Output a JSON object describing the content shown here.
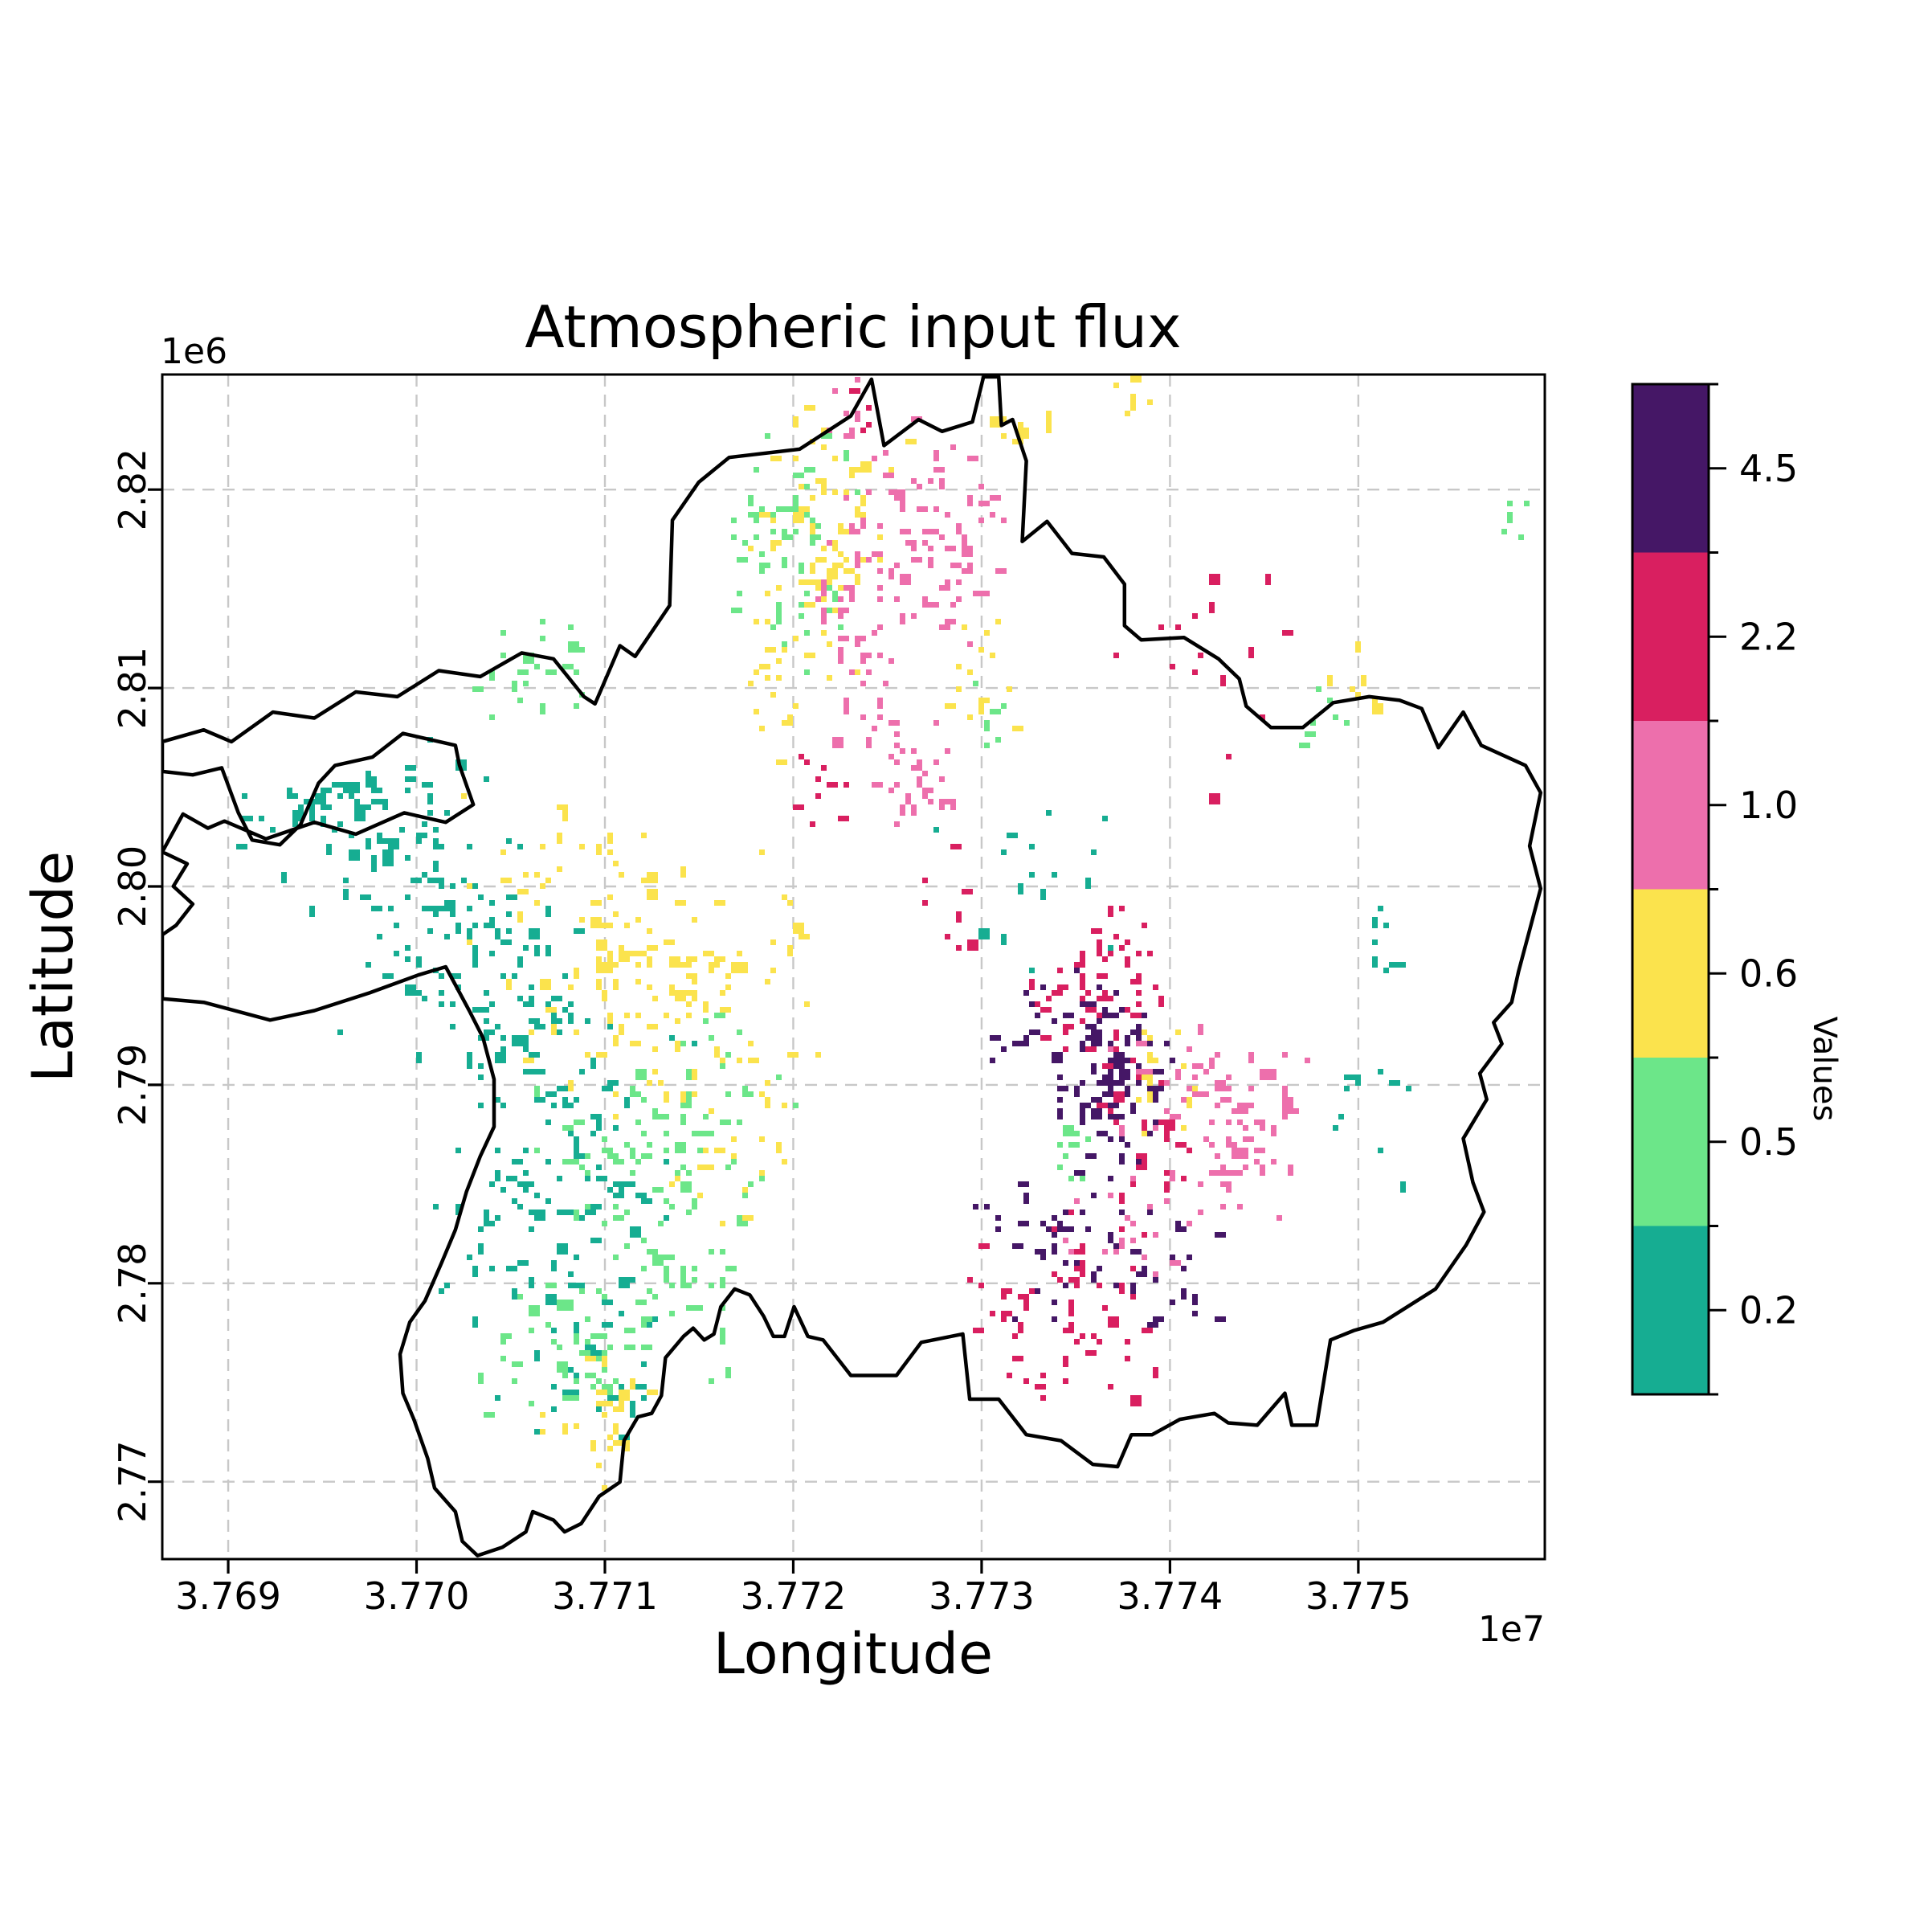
{
  "figure": {
    "title": "Atmospheric input flux",
    "x_axis_label": "Longitude",
    "y_axis_label": "Latitude",
    "x_offset_text": "1e7",
    "y_offset_text": "1e6",
    "background_color": "#ffffff",
    "boundary_color": "#000000",
    "grid_color": "#c8c8c8"
  },
  "colorbar": {
    "label": "Values",
    "classes_top_to_bottom": [
      {
        "label": "4.5",
        "color": "#451766"
      },
      {
        "label": "2.2",
        "color": "#D91F60"
      },
      {
        "label": "1.0",
        "color": "#ED6FAC"
      },
      {
        "label": "0.6",
        "color": "#FBE34D"
      },
      {
        "label": "0.5",
        "color": "#6CE689"
      },
      {
        "label": "0.2",
        "color": "#16AD92"
      }
    ]
  },
  "chart_data": {
    "type": "heatmap",
    "subtype": "categorized-raster-map",
    "title": "Atmospheric input flux",
    "xlabel": "Longitude",
    "ylabel": "Latitude",
    "xlim": [
      37686500,
      37759900
    ],
    "ylim": [
      2766100,
      2825800
    ],
    "x_ticks": [
      {
        "value": 37690000,
        "label": "3.769"
      },
      {
        "value": 37700000,
        "label": "3.770"
      },
      {
        "value": 37710000,
        "label": "3.771"
      },
      {
        "value": 37720000,
        "label": "3.772"
      },
      {
        "value": 37730000,
        "label": "3.773"
      },
      {
        "value": 37740000,
        "label": "3.774"
      },
      {
        "value": 37750000,
        "label": "3.775"
      }
    ],
    "y_ticks": [
      {
        "value": 2820000,
        "label": "2.82"
      },
      {
        "value": 2810000,
        "label": "2.81"
      },
      {
        "value": 2800000,
        "label": "2.80"
      },
      {
        "value": 2790000,
        "label": "2.79"
      },
      {
        "value": 2780000,
        "label": "2.78"
      },
      {
        "value": 2770000,
        "label": "2.77"
      }
    ],
    "grid": true,
    "legend_position": "right-colorbar",
    "value_classes": [
      {
        "label": "0.2",
        "color": "#16AD92"
      },
      {
        "label": "0.5",
        "color": "#6CE689"
      },
      {
        "label": "0.6",
        "color": "#FBE34D"
      },
      {
        "label": "1.0",
        "color": "#ED6FAC"
      },
      {
        "label": "2.2",
        "color": "#D91F60"
      },
      {
        "label": "4.5",
        "color": "#451766"
      }
    ],
    "coords_note": "boundary_frac and clusters use fractions of the plot axes box; x from left 0 to right 1, y from top 0 to bottom 1",
    "boundary_frac": [
      [
        0.513,
        0.004
      ],
      [
        0.522,
        0.06
      ],
      [
        0.547,
        0.038
      ],
      [
        0.564,
        0.048
      ],
      [
        0.586,
        0.04
      ],
      [
        0.594,
        0.002
      ],
      [
        0.605,
        0.002
      ],
      [
        0.607,
        0.043
      ],
      [
        0.615,
        0.038
      ],
      [
        0.625,
        0.073
      ],
      [
        0.622,
        0.141
      ],
      [
        0.64,
        0.124
      ],
      [
        0.658,
        0.151
      ],
      [
        0.681,
        0.154
      ],
      [
        0.696,
        0.177
      ],
      [
        0.696,
        0.212
      ],
      [
        0.708,
        0.224
      ],
      [
        0.739,
        0.222
      ],
      [
        0.764,
        0.24
      ],
      [
        0.779,
        0.257
      ],
      [
        0.784,
        0.28
      ],
      [
        0.802,
        0.298
      ],
      [
        0.825,
        0.298
      ],
      [
        0.847,
        0.277
      ],
      [
        0.873,
        0.272
      ],
      [
        0.895,
        0.275
      ],
      [
        0.911,
        0.282
      ],
      [
        0.923,
        0.315
      ],
      [
        0.941,
        0.285
      ],
      [
        0.954,
        0.313
      ],
      [
        0.986,
        0.33
      ],
      [
        0.997,
        0.353
      ],
      [
        0.989,
        0.398
      ],
      [
        0.997,
        0.434
      ],
      [
        0.989,
        0.469
      ],
      [
        0.981,
        0.504
      ],
      [
        0.976,
        0.53
      ],
      [
        0.963,
        0.547
      ],
      [
        0.969,
        0.565
      ],
      [
        0.953,
        0.59
      ],
      [
        0.958,
        0.612
      ],
      [
        0.941,
        0.645
      ],
      [
        0.948,
        0.682
      ],
      [
        0.956,
        0.707
      ],
      [
        0.943,
        0.735
      ],
      [
        0.921,
        0.772
      ],
      [
        0.883,
        0.8
      ],
      [
        0.862,
        0.807
      ],
      [
        0.845,
        0.815
      ],
      [
        0.835,
        0.887
      ],
      [
        0.817,
        0.887
      ],
      [
        0.812,
        0.86
      ],
      [
        0.792,
        0.887
      ],
      [
        0.771,
        0.885
      ],
      [
        0.761,
        0.877
      ],
      [
        0.746,
        0.88
      ],
      [
        0.736,
        0.882
      ],
      [
        0.716,
        0.895
      ],
      [
        0.701,
        0.895
      ],
      [
        0.691,
        0.922
      ],
      [
        0.673,
        0.92
      ],
      [
        0.65,
        0.9
      ],
      [
        0.625,
        0.895
      ],
      [
        0.605,
        0.865
      ],
      [
        0.584,
        0.865
      ],
      [
        0.579,
        0.81
      ],
      [
        0.549,
        0.817
      ],
      [
        0.531,
        0.845
      ],
      [
        0.498,
        0.845
      ],
      [
        0.478,
        0.815
      ],
      [
        0.467,
        0.812
      ],
      [
        0.457,
        0.787
      ],
      [
        0.45,
        0.812
      ],
      [
        0.442,
        0.812
      ],
      [
        0.435,
        0.795
      ],
      [
        0.425,
        0.777
      ],
      [
        0.414,
        0.772
      ],
      [
        0.404,
        0.787
      ],
      [
        0.399,
        0.81
      ],
      [
        0.392,
        0.815
      ],
      [
        0.384,
        0.805
      ],
      [
        0.377,
        0.812
      ],
      [
        0.364,
        0.83
      ],
      [
        0.361,
        0.862
      ],
      [
        0.354,
        0.877
      ],
      [
        0.344,
        0.88
      ],
      [
        0.334,
        0.9
      ],
      [
        0.331,
        0.935
      ],
      [
        0.316,
        0.947
      ],
      [
        0.303,
        0.97
      ],
      [
        0.291,
        0.977
      ],
      [
        0.283,
        0.967
      ],
      [
        0.268,
        0.96
      ],
      [
        0.263,
        0.977
      ],
      [
        0.246,
        0.99
      ],
      [
        0.228,
        0.997
      ],
      [
        0.217,
        0.985
      ],
      [
        0.212,
        0.96
      ],
      [
        0.197,
        0.94
      ],
      [
        0.192,
        0.915
      ],
      [
        0.182,
        0.882
      ],
      [
        0.174,
        0.86
      ],
      [
        0.172,
        0.827
      ],
      [
        0.179,
        0.8
      ],
      [
        0.19,
        0.782
      ],
      [
        0.202,
        0.75
      ],
      [
        0.212,
        0.722
      ],
      [
        0.22,
        0.69
      ],
      [
        0.23,
        0.66
      ],
      [
        0.24,
        0.635
      ],
      [
        0.24,
        0.595
      ],
      [
        0.232,
        0.56
      ],
      [
        0.222,
        0.537
      ],
      [
        0.205,
        0.5
      ],
      [
        0.185,
        0.507
      ],
      [
        0.15,
        0.522
      ],
      [
        0.11,
        0.537
      ],
      [
        0.078,
        0.545
      ],
      [
        0.03,
        0.53
      ],
      [
        0.0,
        0.527
      ],
      [
        0.0,
        0.473
      ],
      [
        0.01,
        0.465
      ],
      [
        0.022,
        0.447
      ],
      [
        0.008,
        0.432
      ],
      [
        0.018,
        0.413
      ],
      [
        0.0,
        0.403
      ],
      [
        0.015,
        0.371
      ],
      [
        0.033,
        0.383
      ],
      [
        0.045,
        0.377
      ],
      [
        0.075,
        0.392
      ],
      [
        0.11,
        0.378
      ],
      [
        0.14,
        0.388
      ],
      [
        0.175,
        0.37
      ],
      [
        0.205,
        0.378
      ],
      [
        0.225,
        0.363
      ],
      [
        0.215,
        0.33
      ],
      [
        0.212,
        0.313
      ],
      [
        0.174,
        0.303
      ],
      [
        0.152,
        0.323
      ],
      [
        0.125,
        0.33
      ],
      [
        0.113,
        0.345
      ],
      [
        0.1,
        0.38
      ],
      [
        0.085,
        0.397
      ],
      [
        0.065,
        0.393
      ],
      [
        0.055,
        0.37
      ],
      [
        0.043,
        0.332
      ],
      [
        0.022,
        0.338
      ],
      [
        0.0,
        0.335
      ],
      [
        0.0,
        0.31
      ],
      [
        0.03,
        0.3
      ],
      [
        0.05,
        0.31
      ],
      [
        0.08,
        0.285
      ],
      [
        0.11,
        0.29
      ],
      [
        0.14,
        0.268
      ],
      [
        0.17,
        0.272
      ],
      [
        0.2,
        0.25
      ],
      [
        0.23,
        0.255
      ],
      [
        0.26,
        0.235
      ],
      [
        0.283,
        0.24
      ],
      [
        0.305,
        0.272
      ],
      [
        0.313,
        0.278
      ],
      [
        0.331,
        0.229
      ],
      [
        0.342,
        0.238
      ],
      [
        0.367,
        0.195
      ],
      [
        0.369,
        0.123
      ],
      [
        0.388,
        0.091
      ],
      [
        0.41,
        0.07
      ],
      [
        0.461,
        0.063
      ],
      [
        0.498,
        0.035
      ]
    ],
    "clusters": [
      {
        "class": "0.2",
        "x": 0.15,
        "y": 0.38,
        "sx": 0.05,
        "sy": 0.04,
        "n": 80
      },
      {
        "class": "0.2",
        "x": 0.125,
        "y": 0.355,
        "sx": 0.014,
        "sy": 0.012,
        "n": 22
      },
      {
        "class": "0.2",
        "x": 0.2,
        "y": 0.47,
        "sx": 0.04,
        "sy": 0.045,
        "n": 55
      },
      {
        "class": "0.2",
        "x": 0.24,
        "y": 0.545,
        "sx": 0.035,
        "sy": 0.045,
        "n": 45
      },
      {
        "class": "0.2",
        "x": 0.3,
        "y": 0.61,
        "sx": 0.045,
        "sy": 0.048,
        "n": 60
      },
      {
        "class": "0.2",
        "x": 0.255,
        "y": 0.725,
        "sx": 0.03,
        "sy": 0.04,
        "n": 40
      },
      {
        "class": "0.2",
        "x": 0.3,
        "y": 0.82,
        "sx": 0.032,
        "sy": 0.045,
        "n": 40
      },
      {
        "class": "0.2",
        "x": 0.315,
        "y": 0.68,
        "sx": 0.03,
        "sy": 0.03,
        "n": 30
      },
      {
        "class": "0.2",
        "x": 0.63,
        "y": 0.42,
        "sx": 0.035,
        "sy": 0.048,
        "n": 16
      },
      {
        "class": "0.2",
        "x": 0.88,
        "y": 0.48,
        "sx": 0.013,
        "sy": 0.028,
        "n": 9
      },
      {
        "class": "0.2",
        "x": 0.86,
        "y": 0.625,
        "sx": 0.022,
        "sy": 0.035,
        "n": 10
      },
      {
        "class": "0.5",
        "x": 0.45,
        "y": 0.1,
        "sx": 0.028,
        "sy": 0.035,
        "n": 38
      },
      {
        "class": "0.5",
        "x": 0.455,
        "y": 0.19,
        "sx": 0.025,
        "sy": 0.03,
        "n": 25
      },
      {
        "class": "0.5",
        "x": 0.265,
        "y": 0.25,
        "sx": 0.028,
        "sy": 0.028,
        "n": 26
      },
      {
        "class": "0.5",
        "x": 0.345,
        "y": 0.66,
        "sx": 0.038,
        "sy": 0.04,
        "n": 45
      },
      {
        "class": "0.5",
        "x": 0.29,
        "y": 0.825,
        "sx": 0.03,
        "sy": 0.03,
        "n": 40
      },
      {
        "class": "0.5",
        "x": 0.36,
        "y": 0.77,
        "sx": 0.04,
        "sy": 0.045,
        "n": 50
      },
      {
        "class": "0.5",
        "x": 0.4,
        "y": 0.6,
        "sx": 0.035,
        "sy": 0.045,
        "n": 32
      },
      {
        "class": "0.5",
        "x": 0.657,
        "y": 0.64,
        "sx": 0.012,
        "sy": 0.022,
        "n": 12
      },
      {
        "class": "0.5",
        "x": 0.598,
        "y": 0.29,
        "sx": 0.012,
        "sy": 0.018,
        "n": 7
      },
      {
        "class": "0.5",
        "x": 0.975,
        "y": 0.115,
        "sx": 0.008,
        "sy": 0.015,
        "n": 5
      },
      {
        "class": "0.5",
        "x": 0.84,
        "y": 0.29,
        "sx": 0.01,
        "sy": 0.015,
        "n": 7
      },
      {
        "class": "0.6",
        "x": 0.48,
        "y": 0.11,
        "sx": 0.03,
        "sy": 0.045,
        "n": 45
      },
      {
        "class": "0.6",
        "x": 0.475,
        "y": 0.185,
        "sx": 0.028,
        "sy": 0.032,
        "n": 28
      },
      {
        "class": "0.6",
        "x": 0.45,
        "y": 0.27,
        "sx": 0.018,
        "sy": 0.028,
        "n": 18
      },
      {
        "class": "0.6",
        "x": 0.295,
        "y": 0.43,
        "sx": 0.04,
        "sy": 0.038,
        "n": 40
      },
      {
        "class": "0.6",
        "x": 0.33,
        "y": 0.525,
        "sx": 0.045,
        "sy": 0.048,
        "n": 60
      },
      {
        "class": "0.6",
        "x": 0.4,
        "y": 0.505,
        "sx": 0.035,
        "sy": 0.055,
        "n": 40
      },
      {
        "class": "0.6",
        "x": 0.418,
        "y": 0.635,
        "sx": 0.025,
        "sy": 0.042,
        "n": 25
      },
      {
        "class": "0.6",
        "x": 0.315,
        "y": 0.885,
        "sx": 0.022,
        "sy": 0.03,
        "n": 26
      },
      {
        "class": "0.6",
        "x": 0.59,
        "y": 0.25,
        "sx": 0.016,
        "sy": 0.026,
        "n": 16
      },
      {
        "class": "0.6",
        "x": 0.715,
        "y": 0.6,
        "sx": 0.018,
        "sy": 0.03,
        "n": 25
      },
      {
        "class": "0.6",
        "x": 0.7,
        "y": 0.02,
        "sx": 0.01,
        "sy": 0.012,
        "n": 7
      },
      {
        "class": "0.6",
        "x": 0.62,
        "y": 0.045,
        "sx": 0.013,
        "sy": 0.015,
        "n": 9
      },
      {
        "class": "0.6",
        "x": 0.865,
        "y": 0.265,
        "sx": 0.011,
        "sy": 0.018,
        "n": 8
      },
      {
        "class": "1.0",
        "x": 0.54,
        "y": 0.155,
        "sx": 0.032,
        "sy": 0.035,
        "n": 55
      },
      {
        "class": "1.0",
        "x": 0.495,
        "y": 0.028,
        "sx": 0.01,
        "sy": 0.014,
        "n": 8
      },
      {
        "class": "1.0",
        "x": 0.505,
        "y": 0.26,
        "sx": 0.016,
        "sy": 0.035,
        "n": 22
      },
      {
        "class": "1.0",
        "x": 0.56,
        "y": 0.12,
        "sx": 0.03,
        "sy": 0.05,
        "n": 35
      },
      {
        "class": "1.0",
        "x": 0.54,
        "y": 0.335,
        "sx": 0.02,
        "sy": 0.024,
        "n": 32
      },
      {
        "class": "1.0",
        "x": 0.765,
        "y": 0.62,
        "sx": 0.04,
        "sy": 0.045,
        "n": 85
      },
      {
        "class": "1.0",
        "x": 0.7,
        "y": 0.725,
        "sx": 0.025,
        "sy": 0.025,
        "n": 20
      },
      {
        "class": "1.0",
        "x": 0.49,
        "y": 0.2,
        "sx": 0.012,
        "sy": 0.018,
        "n": 10
      },
      {
        "class": "2.2",
        "x": 0.68,
        "y": 0.52,
        "sx": 0.025,
        "sy": 0.05,
        "n": 75
      },
      {
        "class": "2.2",
        "x": 0.655,
        "y": 0.79,
        "sx": 0.035,
        "sy": 0.04,
        "n": 60
      },
      {
        "class": "2.2",
        "x": 0.475,
        "y": 0.34,
        "sx": 0.012,
        "sy": 0.026,
        "n": 10
      },
      {
        "class": "2.2",
        "x": 0.76,
        "y": 0.24,
        "sx": 0.045,
        "sy": 0.055,
        "n": 16
      },
      {
        "class": "2.2",
        "x": 0.565,
        "y": 0.44,
        "sx": 0.016,
        "sy": 0.026,
        "n": 9
      },
      {
        "class": "2.2",
        "x": 0.5,
        "y": 0.028,
        "sx": 0.007,
        "sy": 0.01,
        "n": 5
      },
      {
        "class": "2.2",
        "x": 0.71,
        "y": 0.66,
        "sx": 0.02,
        "sy": 0.03,
        "n": 20
      },
      {
        "class": "4.5",
        "x": 0.685,
        "y": 0.6,
        "sx": 0.021,
        "sy": 0.036,
        "n": 70
      },
      {
        "class": "4.5",
        "x": 0.64,
        "y": 0.73,
        "sx": 0.028,
        "sy": 0.034,
        "n": 35
      },
      {
        "class": "4.5",
        "x": 0.73,
        "y": 0.752,
        "sx": 0.022,
        "sy": 0.028,
        "n": 22
      },
      {
        "class": "4.5",
        "x": 0.62,
        "y": 0.56,
        "sx": 0.014,
        "sy": 0.024,
        "n": 14
      },
      {
        "class": "4.5",
        "x": 0.665,
        "y": 0.548,
        "sx": 0.015,
        "sy": 0.03,
        "n": 20
      }
    ]
  }
}
